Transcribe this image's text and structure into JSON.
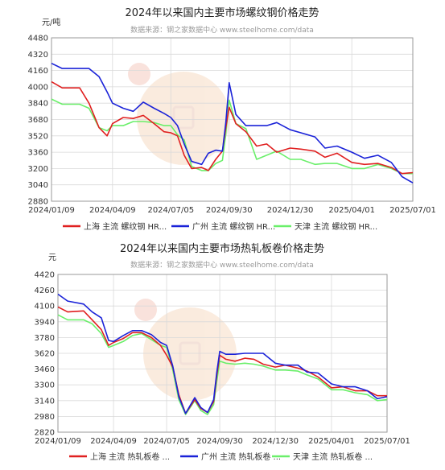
{
  "chart_data": [
    {
      "type": "line",
      "title": "2024年以来国内主要市场螺纹钢价格走势",
      "subtitle": "数据来源：钢之家数据中心 www.steelhome.com/data",
      "unit": "元/吨",
      "xlim": [
        "2024-01-09",
        "2025-07-01"
      ],
      "ylim": [
        2880,
        4480
      ],
      "yticks": [
        2880,
        3040,
        3200,
        3360,
        3520,
        3680,
        3840,
        4000,
        4160,
        4320,
        4480
      ],
      "xticks": [
        "2024/01/09",
        "2024/04/09",
        "2024/07/05",
        "2024/09/30",
        "2024/12/30",
        "2025/04/01",
        "2025/07/01"
      ],
      "grid": true,
      "legend": "bottom",
      "x": [
        "2024-01-09",
        "2024-01-25",
        "2024-02-20",
        "2024-03-05",
        "2024-03-20",
        "2024-04-01",
        "2024-04-09",
        "2024-04-25",
        "2024-05-10",
        "2024-05-25",
        "2024-06-10",
        "2024-06-25",
        "2024-07-05",
        "2024-07-15",
        "2024-07-25",
        "2024-08-05",
        "2024-08-20",
        "2024-08-30",
        "2024-09-10",
        "2024-09-20",
        "2024-09-25",
        "2024-09-30",
        "2024-10-10",
        "2024-10-25",
        "2024-11-10",
        "2024-11-25",
        "2024-12-10",
        "2024-12-30",
        "2025-01-15",
        "2025-02-05",
        "2025-02-20",
        "2025-03-10",
        "2025-04-01",
        "2025-04-20",
        "2025-05-10",
        "2025-05-30",
        "2025-06-15",
        "2025-07-01"
      ],
      "series": [
        {
          "name": "上海 主流 螺纹钢 HR...",
          "color": "#e02020",
          "values": [
            4050,
            3990,
            3990,
            3840,
            3600,
            3520,
            3640,
            3700,
            3690,
            3720,
            3640,
            3560,
            3550,
            3520,
            3330,
            3200,
            3210,
            3180,
            3290,
            3370,
            3600,
            3800,
            3640,
            3560,
            3420,
            3440,
            3360,
            3400,
            3390,
            3370,
            3310,
            3350,
            3260,
            3240,
            3250,
            3210,
            3150,
            3160
          ]
        },
        {
          "name": "广州 主流 螺纹钢 HR...",
          "color": "#1a22d8",
          "values": [
            4230,
            4180,
            4180,
            4180,
            4100,
            3950,
            3840,
            3790,
            3760,
            3850,
            3790,
            3740,
            3700,
            3620,
            3440,
            3270,
            3240,
            3350,
            3380,
            3370,
            3650,
            4040,
            3730,
            3620,
            3620,
            3620,
            3650,
            3580,
            3550,
            3510,
            3400,
            3420,
            3360,
            3300,
            3330,
            3260,
            3120,
            3060
          ]
        },
        {
          "name": "天津 主流 螺纹钢 HR...",
          "color": "#6aef6a",
          "values": [
            3880,
            3830,
            3830,
            3790,
            3600,
            3570,
            3620,
            3620,
            3660,
            3660,
            3650,
            3620,
            3620,
            3530,
            3480,
            3220,
            3180,
            3180,
            3250,
            3280,
            3540,
            3870,
            3640,
            3590,
            3290,
            3330,
            3370,
            3290,
            3290,
            3240,
            3250,
            3250,
            3200,
            3200,
            3240,
            3200,
            3150,
            3150
          ]
        }
      ]
    },
    {
      "type": "line",
      "title": "2024年以来国内主要市场热轧板卷价格走势",
      "subtitle": "数据来源：钢之家数据中心 www.steelhome.com/data",
      "unit": "元",
      "xlim": [
        "2024-01-09",
        "2025-07-01"
      ],
      "ylim": [
        2820,
        4420
      ],
      "yticks": [
        2820,
        2980,
        3140,
        3300,
        3460,
        3620,
        3780,
        3940,
        4100,
        4260,
        4420
      ],
      "xticks": [
        "2024/01/09",
        "2024/04/09",
        "2024/07/05",
        "2024/09/30",
        "2024/12/30",
        "2025/04/01",
        "2025/07/01"
      ],
      "grid": true,
      "legend": "bottom",
      "x": [
        "2024-01-09",
        "2024-01-25",
        "2024-02-20",
        "2024-03-05",
        "2024-03-20",
        "2024-04-01",
        "2024-04-09",
        "2024-04-25",
        "2024-05-10",
        "2024-05-25",
        "2024-06-10",
        "2024-06-25",
        "2024-07-05",
        "2024-07-15",
        "2024-07-25",
        "2024-08-05",
        "2024-08-20",
        "2024-08-30",
        "2024-09-10",
        "2024-09-20",
        "2024-09-25",
        "2024-09-30",
        "2024-10-10",
        "2024-10-25",
        "2024-11-10",
        "2024-11-25",
        "2024-12-10",
        "2024-12-30",
        "2025-01-15",
        "2025-02-05",
        "2025-02-20",
        "2025-03-10",
        "2025-04-01",
        "2025-04-20",
        "2025-05-10",
        "2025-05-30",
        "2025-06-15",
        "2025-07-01"
      ],
      "series": [
        {
          "name": "上海 主流 热轧板卷 ...",
          "color": "#e02020",
          "values": [
            4090,
            4040,
            4050,
            3960,
            3860,
            3700,
            3730,
            3770,
            3830,
            3830,
            3780,
            3700,
            3600,
            3480,
            3200,
            3010,
            3150,
            3060,
            3020,
            3130,
            3390,
            3600,
            3560,
            3540,
            3570,
            3560,
            3510,
            3480,
            3500,
            3470,
            3440,
            3380,
            3270,
            3280,
            3240,
            3240,
            3190,
            3190
          ]
        },
        {
          "name": "广州 主流 热轧板卷 ...",
          "color": "#1a22d8",
          "values": [
            4220,
            4150,
            4120,
            4040,
            3980,
            3750,
            3740,
            3800,
            3850,
            3850,
            3810,
            3730,
            3700,
            3490,
            3180,
            3010,
            3170,
            3070,
            3020,
            3150,
            3420,
            3640,
            3610,
            3610,
            3620,
            3620,
            3620,
            3520,
            3500,
            3500,
            3430,
            3420,
            3310,
            3280,
            3280,
            3240,
            3160,
            3180
          ]
        },
        {
          "name": "天津 主流 热轧板卷 ...",
          "color": "#6aef6a",
          "values": [
            4010,
            3960,
            3960,
            3920,
            3820,
            3680,
            3700,
            3740,
            3800,
            3820,
            3760,
            3700,
            3680,
            3450,
            3150,
            3000,
            3140,
            3040,
            3000,
            3100,
            3330,
            3540,
            3520,
            3510,
            3520,
            3510,
            3490,
            3450,
            3450,
            3440,
            3400,
            3360,
            3250,
            3250,
            3220,
            3200,
            3140,
            3150
          ]
        }
      ]
    }
  ]
}
